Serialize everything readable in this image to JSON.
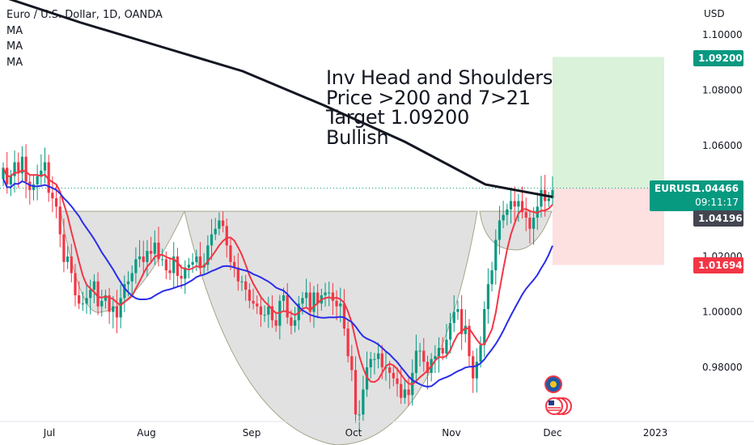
{
  "legend": {
    "title": "Euro / U.S. Dollar, 1D, OANDA",
    "ma1": "MA",
    "ma2": "MA",
    "ma3": "MA"
  },
  "currency": "USD",
  "annotation": {
    "line1": "Inv Head and Shoulders",
    "line2": "Price >200 and 7>21",
    "line3": "Target 1.09200",
    "line4": "Bullish"
  },
  "price_tags": {
    "target": "1.09200",
    "symbol": "EURUSD",
    "current": "1.04466",
    "countdown": "09:11:17",
    "ma": "1.04196",
    "stop": "1.01694"
  },
  "colors": {
    "up": "#089981",
    "down": "#f23645",
    "ma_fast": "#f23645",
    "ma_slow": "#2a2ee8",
    "ma_200": "#131722",
    "profit_zone": "#d9f2d9",
    "loss_zone": "#fde0e0",
    "pattern_fill": "#d9d9d9"
  },
  "chart_data": {
    "type": "candlestick",
    "title": "Euro / U.S. Dollar, 1D, OANDA",
    "y_axis": {
      "unit": "USD",
      "ticks": [
        "1.10000",
        "1.08000",
        "1.06000",
        "1.04000",
        "1.02000",
        "1.00000",
        "0.98000"
      ],
      "range": [
        0.953,
        1.133
      ]
    },
    "x_axis": {
      "ticks": [
        "Jul",
        "Aug",
        "Sep",
        "Oct",
        "Nov",
        "Dec",
        "2023"
      ]
    },
    "current_price": 1.04466,
    "ma_200_value": 1.04196,
    "long_position": {
      "entry": 1.04466,
      "target": 1.092,
      "stop": 1.01694
    },
    "closes": [
      1.052,
      1.046,
      1.049,
      1.054,
      1.05,
      1.056,
      1.047,
      1.044,
      1.046,
      1.049,
      1.051,
      1.054,
      1.043,
      1.041,
      1.038,
      1.028,
      1.018,
      1.02,
      1.014,
      1.006,
      1.003,
      1.003,
      1.005,
      1.008,
      1.011,
      1.002,
      1.004,
      1.006,
      1.0,
      1.002,
      0.998,
      1.005,
      1.01,
      1.011,
      1.014,
      1.019,
      1.02,
      1.018,
      1.022,
      1.021,
      1.025,
      1.019,
      1.019,
      1.015,
      1.014,
      1.02,
      1.013,
      1.012,
      1.016,
      1.017,
      1.018,
      1.02,
      1.016,
      1.017,
      1.024,
      1.028,
      1.03,
      1.033,
      1.031,
      1.024,
      1.018,
      1.016,
      1.011,
      1.011,
      1.008,
      1.004,
      1.003,
      1.002,
      0.999,
      0.999,
      1.002,
      0.997,
      0.995,
      1.004,
      1.006,
      0.998,
      0.995,
      0.997,
      1.003,
      1.005,
      1.007,
      1.0,
      1.007,
      1.003,
      1.006,
      1.007,
      1.007,
      1.004,
      1.002,
      1.003,
      0.994,
      0.984,
      0.979,
      0.963,
      0.963,
      0.972,
      0.98,
      0.983,
      0.983,
      0.985,
      0.98,
      0.98,
      0.978,
      0.976,
      0.974,
      0.969,
      0.972,
      0.97,
      0.978,
      0.986,
      0.986,
      0.982,
      0.978,
      0.983,
      0.984,
      0.987,
      0.985,
      0.99,
      0.996,
      1.0,
      1.001,
      0.992,
      0.995,
      0.984,
      0.976,
      0.982,
      0.988,
      1.001,
      1.01,
      1.015,
      1.026,
      1.033,
      1.035,
      1.037,
      1.04,
      1.038,
      1.04,
      1.036,
      1.034,
      1.03,
      1.034,
      1.038,
      1.044,
      1.04,
      1.041,
      1.044
    ]
  }
}
